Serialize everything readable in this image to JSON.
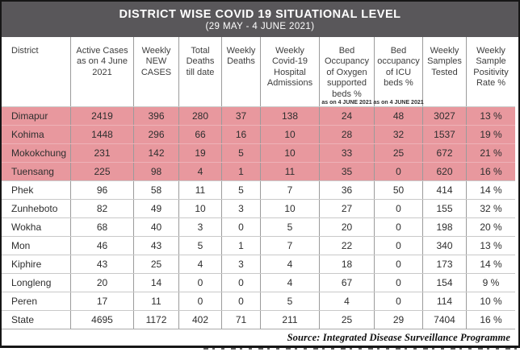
{
  "chart_data": {
    "type": "table",
    "title": "DISTRICT WISE COVID 19 SITUATIONAL LEVEL",
    "subtitle": "(29 MAY - 4 JUNE 2021)",
    "columns": [
      {
        "label": "District"
      },
      {
        "label": "Active Cases as on 4 June 2021"
      },
      {
        "label": "Weekly NEW CASES"
      },
      {
        "label": "Total Deaths till date"
      },
      {
        "label": "Weekly Deaths"
      },
      {
        "label": "Weekly Covid-19 Hospital Admissions"
      },
      {
        "label": "Bed Occupancy of Oxygen supported beds %",
        "note": "as on 4 JUNE 2021"
      },
      {
        "label": "Bed occupancy of ICU beds %",
        "note": "as on 4 JUNE 2021"
      },
      {
        "label": "Weekly Samples Tested"
      },
      {
        "label": "Weekly Sample Positivity Rate %"
      }
    ],
    "rows": [
      {
        "district": "Dimapur",
        "values": [
          "2419",
          "396",
          "280",
          "37",
          "138",
          "24",
          "48",
          "3027",
          "13 %"
        ],
        "highlighted": true
      },
      {
        "district": "Kohima",
        "values": [
          "1448",
          "296",
          "66",
          "16",
          "10",
          "28",
          "32",
          "1537",
          "19 %"
        ],
        "highlighted": true
      },
      {
        "district": "Mokokchung",
        "values": [
          "231",
          "142",
          "19",
          "5",
          "10",
          "33",
          "25",
          "672",
          "21 %"
        ],
        "highlighted": true
      },
      {
        "district": "Tuensang",
        "values": [
          "225",
          "98",
          "4",
          "1",
          "11",
          "35",
          "0",
          "620",
          "16 %"
        ],
        "highlighted": true
      },
      {
        "district": "Phek",
        "values": [
          "96",
          "58",
          "11",
          "5",
          "7",
          "36",
          "50",
          "414",
          "14 %"
        ],
        "highlighted": false
      },
      {
        "district": "Zunheboto",
        "values": [
          "82",
          "49",
          "10",
          "3",
          "10",
          "27",
          "0",
          "155",
          "32 %"
        ],
        "highlighted": false
      },
      {
        "district": "Wokha",
        "values": [
          "68",
          "40",
          "3",
          "0",
          "5",
          "20",
          "0",
          "198",
          "20 %"
        ],
        "highlighted": false
      },
      {
        "district": "Mon",
        "values": [
          "46",
          "43",
          "5",
          "1",
          "7",
          "22",
          "0",
          "340",
          "13 %"
        ],
        "highlighted": false
      },
      {
        "district": "Kiphire",
        "values": [
          "43",
          "25",
          "4",
          "3",
          "4",
          "18",
          "0",
          "173",
          "14 %"
        ],
        "highlighted": false
      },
      {
        "district": "Longleng",
        "values": [
          "20",
          "14",
          "0",
          "0",
          "4",
          "67",
          "0",
          "154",
          "9 %"
        ],
        "highlighted": false
      },
      {
        "district": "Peren",
        "values": [
          "17",
          "11",
          "0",
          "0",
          "5",
          "4",
          "0",
          "114",
          "10 %"
        ],
        "highlighted": false
      },
      {
        "district": "State",
        "values": [
          "4695",
          "1172",
          "402",
          "71",
          "211",
          "25",
          "29",
          "7404",
          "16 %"
        ],
        "highlighted": false
      }
    ],
    "source": "Source: Integrated Disease Surveillance Programme"
  },
  "colors": {
    "title_bar": "#59575a",
    "highlight_row": "#e8989e",
    "grid_line": "#9b9b9b",
    "row_line": "#c9c9c9",
    "header_text": "#3d3d3d",
    "body_text": "#2e2e2e"
  }
}
